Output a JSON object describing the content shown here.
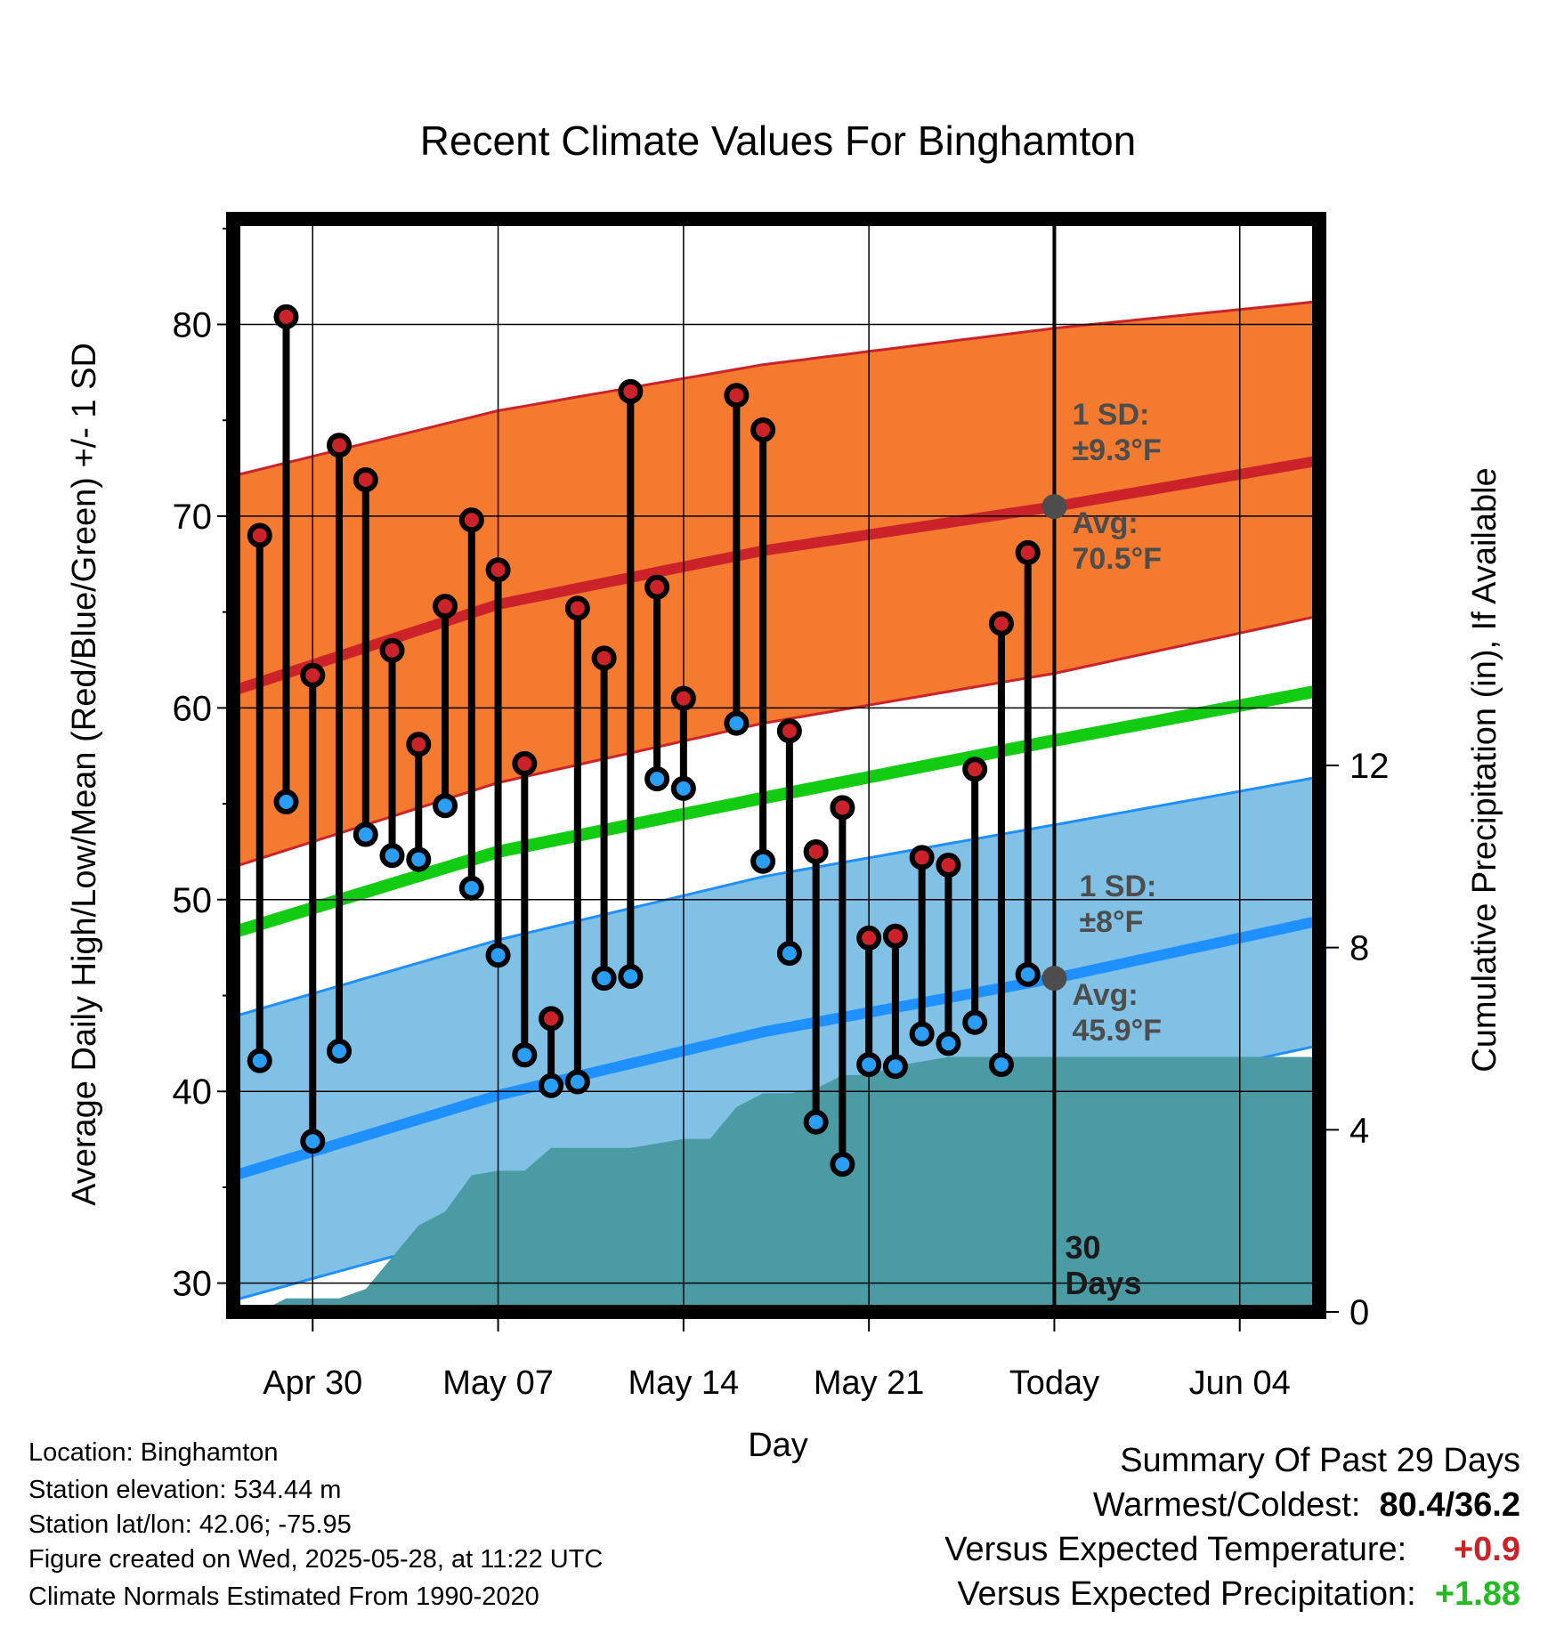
{
  "chart_data": {
    "type": "line",
    "title": "Recent Climate Values For Binghamton",
    "xlabel": "Day",
    "ylabel": "Average Daily High/Low/Mean (Red/Blue/Green) +/- 1 SD",
    "y2label": "Cumulative Precipitation (in), If Available",
    "ylim": [
      28.5,
      85.5
    ],
    "y2lim": [
      0,
      24
    ],
    "x_tick_labels": [
      "Apr 30",
      "May 07",
      "May 14",
      "May 21",
      "Today",
      "Jun 04"
    ],
    "x_tick_days": [
      3,
      10,
      17,
      24,
      31,
      38
    ],
    "y_ticks": [
      30,
      40,
      50,
      60,
      70,
      80
    ],
    "y2_ticks": [
      0,
      4,
      8,
      12
    ],
    "xlim_days": [
      0,
      41
    ],
    "today_day": 31,
    "today_label": [
      "30",
      "Days"
    ],
    "grid": true,
    "high_band": {
      "days": [
        0,
        10,
        20,
        31,
        41
      ],
      "upper": [
        72.1,
        75.5,
        77.9,
        79.8,
        81.2
      ],
      "mean": [
        60.9,
        65.4,
        68.2,
        70.5,
        72.9
      ],
      "lower": [
        51.7,
        56.1,
        59.2,
        61.8,
        64.8
      ],
      "sd_label": "1 SD:",
      "sd_value": "±9.3°F",
      "avg_label": "Avg:",
      "avg_value": "70.5°F"
    },
    "low_band": {
      "days": [
        0,
        10,
        20,
        31,
        41
      ],
      "upper": [
        43.9,
        47.9,
        51.2,
        53.9,
        56.4
      ],
      "mean": [
        35.6,
        39.8,
        43.1,
        45.9,
        48.9
      ],
      "lower": [
        29.1,
        32.9,
        36.2,
        39.4,
        42.4
      ],
      "sd_label": "1 SD:",
      "sd_value": "±8°F",
      "avg_label": "Avg:",
      "avg_value": "45.9°F"
    },
    "mean_line": {
      "days": [
        0,
        10,
        20,
        31,
        41
      ],
      "values": [
        48.3,
        52.5,
        55.3,
        58.3,
        60.9
      ]
    },
    "series": [
      {
        "name": "High",
        "color": "#cc2229",
        "values": [
          69.0,
          80.4,
          61.7,
          73.7,
          71.9,
          63.0,
          58.1,
          65.3,
          69.8,
          67.2,
          57.1,
          43.8,
          65.2,
          62.6,
          76.5,
          66.3,
          60.5,
          null,
          76.3,
          74.5,
          58.8,
          52.5,
          54.8,
          48.0,
          48.1,
          52.2,
          51.8,
          56.8,
          64.4,
          68.1
        ]
      },
      {
        "name": "Low",
        "color": "#2a9df4",
        "values": [
          41.6,
          55.1,
          37.4,
          42.1,
          53.4,
          52.3,
          52.1,
          54.9,
          50.6,
          47.1,
          41.9,
          40.3,
          40.5,
          45.9,
          46.0,
          56.3,
          55.8,
          null,
          59.2,
          52.0,
          47.2,
          38.4,
          36.2,
          41.4,
          41.3,
          43.0,
          42.5,
          43.6,
          41.4,
          46.1
        ]
      }
    ],
    "obs_days": [
      1,
      2,
      3,
      4,
      5,
      6,
      7,
      8,
      9,
      10,
      11,
      12,
      13,
      14,
      15,
      16,
      17,
      18,
      19,
      20,
      21,
      22,
      23,
      24,
      25,
      26,
      27,
      28,
      29,
      30
    ],
    "precip": {
      "days": [
        0,
        1,
        2,
        3,
        4,
        5,
        6,
        7,
        8,
        9,
        10,
        11,
        12,
        13,
        14,
        15,
        16,
        17,
        18,
        19,
        20,
        21,
        22,
        23,
        24,
        25,
        26,
        27,
        28,
        29,
        30,
        31,
        41
      ],
      "values": [
        0,
        0,
        0.3,
        0.3,
        0.3,
        0.5,
        1.2,
        1.9,
        2.2,
        3.0,
        3.1,
        3.1,
        3.6,
        3.6,
        3.6,
        3.6,
        3.7,
        3.8,
        3.8,
        4.5,
        4.8,
        4.8,
        4.9,
        5.2,
        5.2,
        5.4,
        5.5,
        5.6,
        5.6,
        5.6,
        5.6,
        5.6,
        5.6
      ]
    }
  },
  "footer": {
    "location": "Location: Binghamton",
    "elevation": "Station elevation: 534.44 m",
    "latlon": "Station lat/lon: 42.06; -75.95",
    "created": "Figure created on Wed, 2025-05-28, at 11:22 UTC",
    "normals": "Climate Normals Estimated From 1990-2020"
  },
  "summary": {
    "title": "Summary Of Past 29 Days",
    "warmcold_label": "Warmest/Coldest:",
    "warmcold_value": "80.4/36.2",
    "temp_label": "Versus Expected Temperature:",
    "temp_value": "+0.9",
    "temp_color": "#cc2229",
    "precip_label": "Versus Expected Precipitation:",
    "precip_value": "+1.88",
    "precip_color": "#22bb22"
  }
}
